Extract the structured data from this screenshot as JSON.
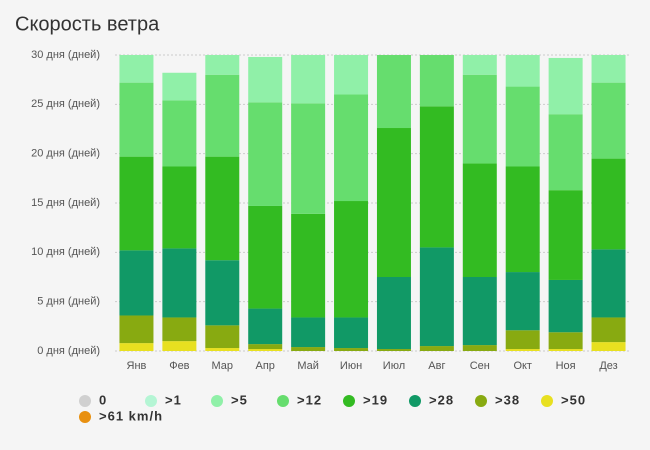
{
  "chart_data": {
    "type": "stacked-bar",
    "title": "Скорость ветра",
    "categories": [
      "Янв",
      "Фев",
      "Мар",
      "Апр",
      "Май",
      "Июн",
      "Июл",
      "Авг",
      "Сен",
      "Окт",
      "Ноя",
      "Дез"
    ],
    "series": [
      {
        "name": "0",
        "color": "#d0d0d0",
        "values": [
          0,
          0,
          0,
          0,
          0,
          0,
          0,
          0,
          0,
          0,
          0,
          0
        ]
      },
      {
        "name": ">1",
        "color": "#b4f5d4",
        "values": [
          0,
          0,
          0,
          0,
          0,
          0,
          0,
          0,
          0,
          0,
          0,
          0
        ]
      },
      {
        "name": ">5",
        "color": "#90f0a8",
        "values": [
          2.8,
          2.8,
          2.0,
          4.6,
          4.9,
          4.0,
          0,
          0,
          2.0,
          3.2,
          5.7,
          2.8
        ]
      },
      {
        "name": ">12",
        "color": "#66dd6e",
        "values": [
          7.5,
          6.7,
          8.3,
          10.5,
          11.2,
          10.8,
          7.4,
          5.2,
          9.0,
          8.1,
          7.7,
          7.7
        ]
      },
      {
        "name": ">19",
        "color": "#33bb22",
        "values": [
          9.5,
          8.3,
          10.5,
          10.4,
          10.5,
          11.8,
          15.1,
          14.3,
          11.5,
          10.7,
          9.1,
          9.2
        ]
      },
      {
        "name": ">28",
        "color": "#119966",
        "values": [
          6.6,
          7.0,
          6.6,
          3.6,
          3.0,
          3.1,
          7.3,
          10.0,
          6.9,
          5.9,
          5.3,
          6.9
        ]
      },
      {
        "name": ">38",
        "color": "#88aa11",
        "values": [
          2.8,
          2.4,
          2.3,
          0.5,
          0.4,
          0.3,
          0.2,
          0.5,
          0.6,
          1.9,
          1.7,
          2.5
        ]
      },
      {
        "name": ">50",
        "color": "#e8e020",
        "values": [
          0.8,
          1.0,
          0.3,
          0.2,
          0,
          0,
          0,
          0,
          0,
          0.2,
          0.2,
          0.9
        ]
      },
      {
        "name": ">61 km/h",
        "color": "#e89010",
        "values": [
          0,
          0,
          0,
          0,
          0,
          0,
          0,
          0,
          0,
          0,
          0,
          0
        ]
      }
    ],
    "ylim": [
      0,
      30
    ],
    "yticks": [
      {
        "value": 0,
        "label": "0 дня (дней)"
      },
      {
        "value": 5,
        "label": "5 дня (дней)"
      },
      {
        "value": 10,
        "label": "10 дня (дней)"
      },
      {
        "value": 15,
        "label": "15 дня (дней)"
      },
      {
        "value": 20,
        "label": "20 дня (дней)"
      },
      {
        "value": 25,
        "label": "25 дня (дней)"
      },
      {
        "value": 30,
        "label": "30 дня (дней)"
      }
    ],
    "grid": true
  }
}
